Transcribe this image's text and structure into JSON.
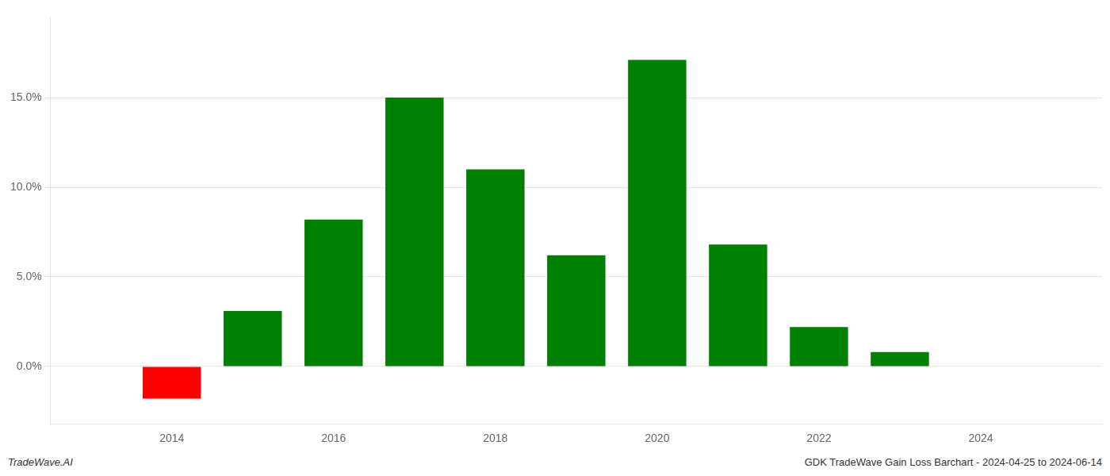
{
  "chart_data": {
    "type": "bar",
    "x": [
      2014,
      2015,
      2016,
      2017,
      2018,
      2019,
      2020,
      2021,
      2022,
      2023
    ],
    "values": [
      -1.8,
      3.1,
      8.2,
      15.0,
      11.0,
      6.2,
      17.1,
      6.8,
      2.2,
      0.8
    ],
    "colors": [
      "#ff0000",
      "#008000",
      "#008000",
      "#008000",
      "#008000",
      "#008000",
      "#008000",
      "#008000",
      "#008000",
      "#008000"
    ],
    "xlim": [
      2012.5,
      2025.5
    ],
    "xticks": [
      2014,
      2016,
      2018,
      2020,
      2022,
      2024
    ],
    "ylim": [
      -3.2,
      19.5
    ],
    "yticks": [
      {
        "value": 0.0,
        "label": "0.0%"
      },
      {
        "value": 5.0,
        "label": "5.0%"
      },
      {
        "value": 10.0,
        "label": "10.0%"
      },
      {
        "value": 15.0,
        "label": "15.0%"
      }
    ],
    "grid": "y",
    "annotations": [
      "TradeWave.AI",
      "GDK TradeWave Gain Loss Barchart - 2024-04-25 to 2024-06-14"
    ]
  }
}
